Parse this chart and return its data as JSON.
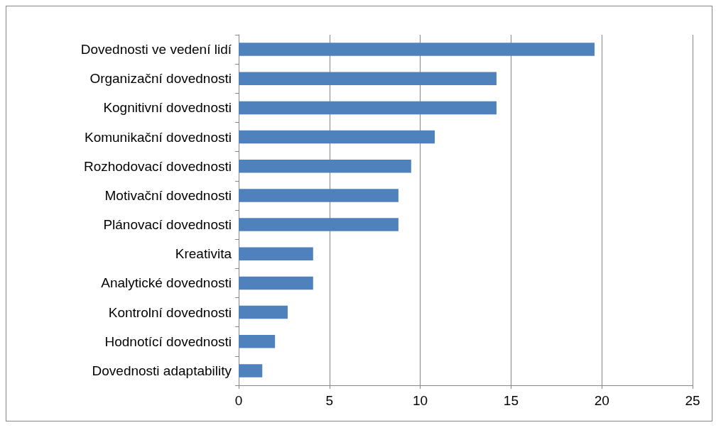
{
  "chart_data": {
    "type": "bar",
    "orientation": "horizontal",
    "categories": [
      "Dovednosti ve vedení lidí",
      "Organizační dovednosti",
      "Kognitivní dovednosti",
      "Komunikační dovednosti",
      "Rozhodovací dovednosti",
      "Motivační dovednosti",
      "Plánovací dovednosti",
      "Kreativita",
      "Analytické dovednosti",
      "Kontrolní dovednosti",
      "Hodnotící dovednosti",
      "Dovednosti adaptability"
    ],
    "values": [
      19.6,
      14.2,
      14.2,
      10.8,
      9.5,
      8.8,
      8.8,
      4.1,
      4.1,
      2.7,
      2.0,
      1.3
    ],
    "color": "#4f81bd",
    "xlim": [
      0,
      25
    ],
    "xticks": [
      0,
      5,
      10,
      15,
      20,
      25
    ],
    "grid": "x"
  }
}
